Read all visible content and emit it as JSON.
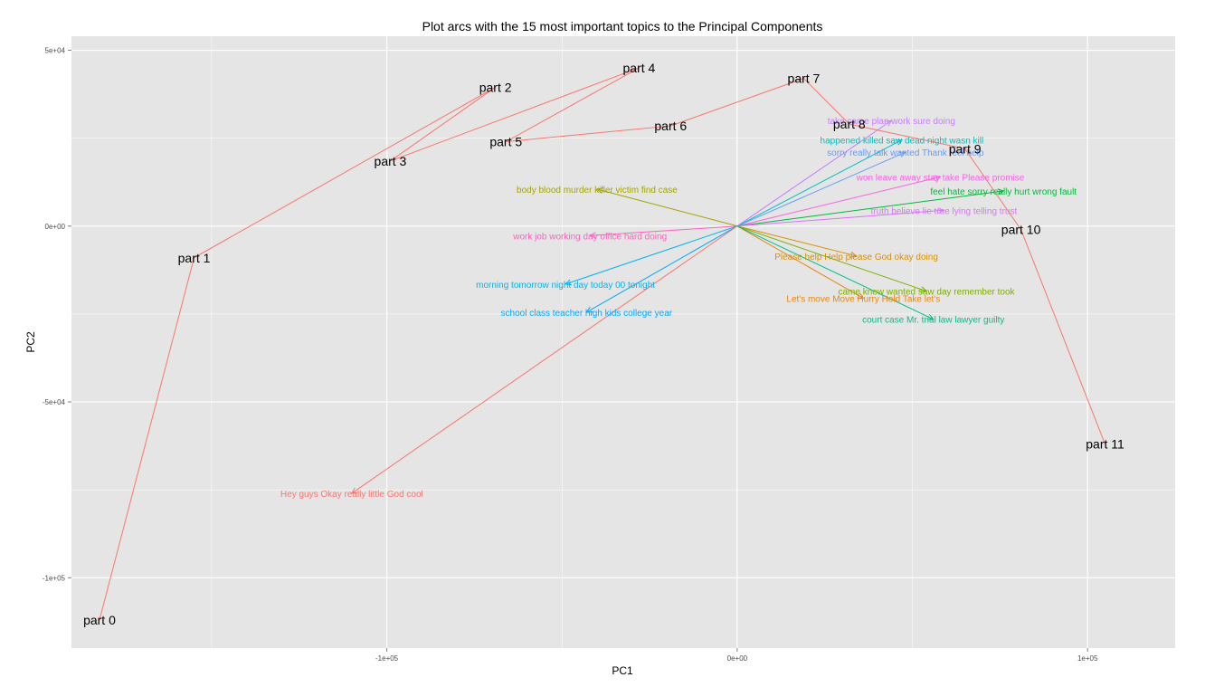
{
  "chart_data": {
    "type": "scatter",
    "title": "Plot arcs with the 15 most important topics to the Principal Components",
    "xlabel": "PC1",
    "ylabel": "PC2",
    "xlim": [
      -190000,
      125000
    ],
    "ylim": [
      -120000,
      54000
    ],
    "x_ticks": [
      {
        "value": -100000,
        "label": "-1e+05"
      },
      {
        "value": 0,
        "label": "0e+00"
      },
      {
        "value": 100000,
        "label": "1e+05"
      }
    ],
    "y_ticks": [
      {
        "value": 50000,
        "label": "5e+04"
      },
      {
        "value": 0,
        "label": "0e+00"
      },
      {
        "value": -50000,
        "label": "-5e+04"
      },
      {
        "value": -100000,
        "label": "-1e+05"
      }
    ],
    "grid": true,
    "background": "#e5e5e5",
    "arc_color": "#f8766d",
    "arc_points": [
      {
        "name": "part 0",
        "x": -182000,
        "y": -112000
      },
      {
        "name": "part 1",
        "x": -155000,
        "y": -9000
      },
      {
        "name": "part 2",
        "x": -69000,
        "y": 39500
      },
      {
        "name": "part 3",
        "x": -99000,
        "y": 18500
      },
      {
        "name": "part 4",
        "x": -28000,
        "y": 45000
      },
      {
        "name": "part 5",
        "x": -66000,
        "y": 24000
      },
      {
        "name": "part 6",
        "x": -19000,
        "y": 28500
      },
      {
        "name": "part 7",
        "x": 19000,
        "y": 42000
      },
      {
        "name": "part 8",
        "x": 32000,
        "y": 29000
      },
      {
        "name": "part 9",
        "x": 65000,
        "y": 22000
      },
      {
        "name": "part 10",
        "x": 81000,
        "y": -1000
      },
      {
        "name": "part 11",
        "x": 105000,
        "y": -62000
      }
    ],
    "topics": [
      {
        "label": "take came plan work sure doing",
        "x": 44000,
        "y": 30000,
        "color": "#c77cff"
      },
      {
        "label": "happened killed saw dead night wasn kill",
        "x": 47000,
        "y": 24500,
        "color": "#00bfc4"
      },
      {
        "label": "sorry really talk wanted Thank feel help",
        "x": 48000,
        "y": 21000,
        "color": "#619cff"
      },
      {
        "label": "won leave away stay take Please promise",
        "x": 58000,
        "y": 14000,
        "color": "#f564e3"
      },
      {
        "label": "feel hate sorry really hurt wrong fault",
        "x": 76000,
        "y": 10000,
        "color": "#00ba38"
      },
      {
        "label": "truth believe lie true lying telling trust",
        "x": 59000,
        "y": 4500,
        "color": "#db72fb"
      },
      {
        "label": "body blood murder killer victim find case",
        "x": -40000,
        "y": 10500,
        "color": "#a3a500"
      },
      {
        "label": "work job working day office hard doing",
        "x": -42000,
        "y": -2700,
        "color": "#ff61c3"
      },
      {
        "label": "Please help Help please God okay doing",
        "x": 34000,
        "y": -8500,
        "color": "#d89000"
      },
      {
        "label": "came knew wanted saw day remember took",
        "x": 54000,
        "y": -18500,
        "color": "#7cae00"
      },
      {
        "label": "Let's move Move Hurry Hold Take let's",
        "x": 36000,
        "y": -20500,
        "color": "#e68613"
      },
      {
        "label": "court case Mr. trial law lawyer guilty",
        "x": 56000,
        "y": -26500,
        "color": "#00c08b"
      },
      {
        "label": "morning tomorrow night day today 00 tonight",
        "x": -49000,
        "y": -16500,
        "color": "#00b4f0"
      },
      {
        "label": "school class teacher high kids college year",
        "x": -43000,
        "y": -24500,
        "color": "#00a9ff"
      },
      {
        "label": "Hey guys Okay really little God cool",
        "x": -110000,
        "y": -76000,
        "color": "#f8766d"
      }
    ]
  }
}
